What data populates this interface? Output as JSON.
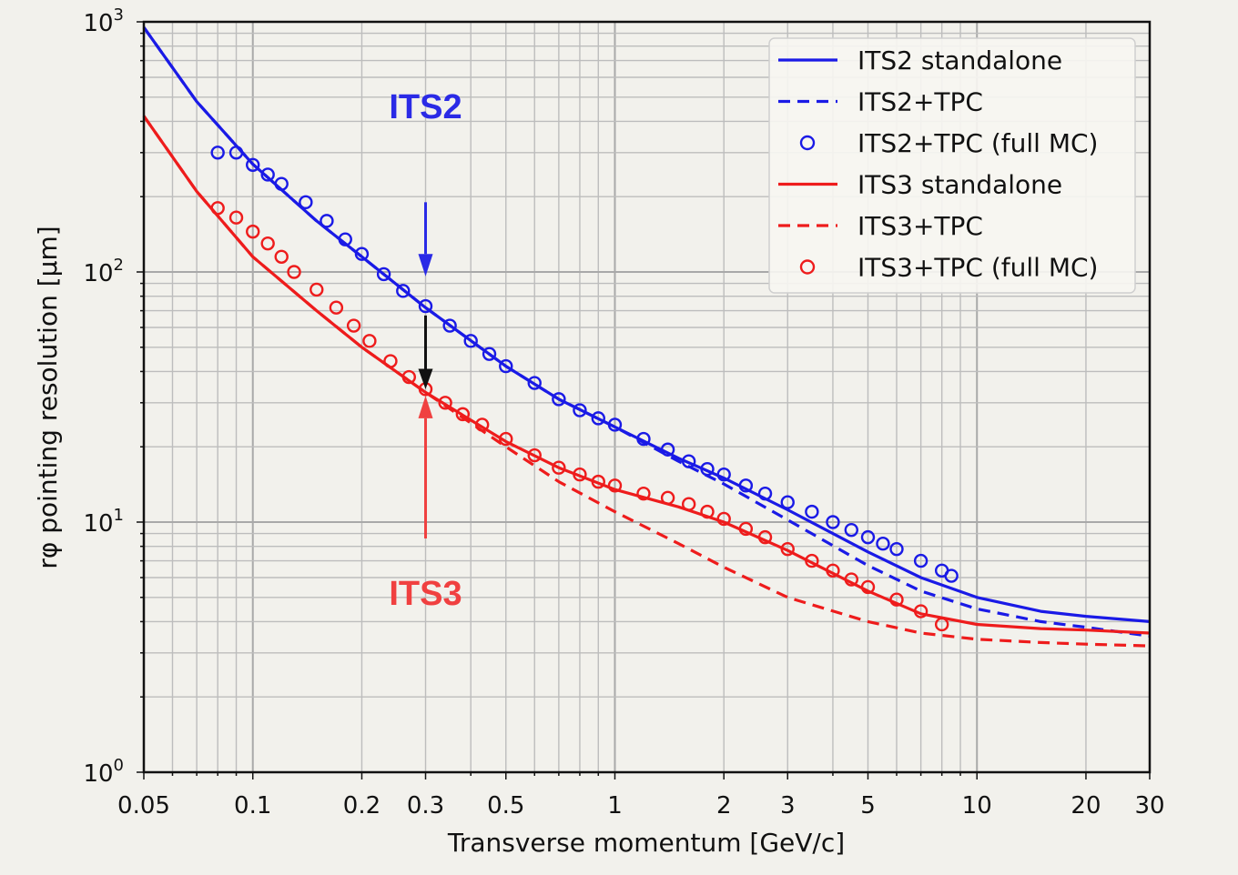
{
  "chart_data": {
    "type": "line",
    "title": "",
    "xlabel": "Transverse momentum [GeV/c]",
    "ylabel": "rφ pointing resolution [μm]",
    "xscale": "log",
    "yscale": "log",
    "xlim": [
      0.05,
      30
    ],
    "ylim": [
      1,
      1000
    ],
    "grid": true,
    "legend_position": "top-right",
    "x_ticks": [
      {
        "value": 0.05,
        "label": "0.05"
      },
      {
        "value": 0.1,
        "label": "0.1"
      },
      {
        "value": 0.2,
        "label": "0.2"
      },
      {
        "value": 0.3,
        "label": "0.3"
      },
      {
        "value": 0.5,
        "label": "0.5"
      },
      {
        "value": 1,
        "label": "1"
      },
      {
        "value": 2,
        "label": "2"
      },
      {
        "value": 3,
        "label": "3"
      },
      {
        "value": 5,
        "label": "5"
      },
      {
        "value": 10,
        "label": "10"
      },
      {
        "value": 20,
        "label": "20"
      },
      {
        "value": 30,
        "label": "30"
      }
    ],
    "y_ticks": [
      {
        "value": 1,
        "base": "10",
        "exp": "0"
      },
      {
        "value": 10,
        "base": "10",
        "exp": "1"
      },
      {
        "value": 100,
        "base": "10",
        "exp": "2"
      },
      {
        "value": 1000,
        "base": "10",
        "exp": "3"
      }
    ],
    "series": [
      {
        "name": "ITS2 standalone",
        "style": "solid",
        "color": "#1a1ae6",
        "x": [
          0.05,
          0.07,
          0.1,
          0.15,
          0.2,
          0.3,
          0.5,
          0.7,
          1,
          1.5,
          2,
          3,
          5,
          7,
          10,
          15,
          20,
          30
        ],
        "y": [
          950,
          480,
          270,
          160,
          115,
          72,
          42,
          31,
          24,
          18,
          15,
          11.2,
          7.6,
          6.0,
          5.0,
          4.4,
          4.2,
          4.0
        ]
      },
      {
        "name": "ITS2+TPC",
        "style": "dashed",
        "color": "#1a1ae6",
        "x": [
          0.05,
          0.07,
          0.1,
          0.15,
          0.2,
          0.3,
          0.5,
          0.7,
          1,
          1.5,
          2,
          3,
          5,
          7,
          10,
          15,
          20,
          30
        ],
        "y": [
          950,
          480,
          270,
          160,
          115,
          72,
          42,
          31,
          24,
          17.5,
          14.2,
          10.2,
          6.7,
          5.3,
          4.5,
          4.0,
          3.8,
          3.5
        ]
      },
      {
        "name": "ITS2+TPC (full MC)",
        "style": "markers",
        "color": "#1a1ae6",
        "x": [
          0.08,
          0.09,
          0.1,
          0.11,
          0.12,
          0.14,
          0.16,
          0.18,
          0.2,
          0.23,
          0.26,
          0.3,
          0.35,
          0.4,
          0.45,
          0.5,
          0.6,
          0.7,
          0.8,
          0.9,
          1,
          1.2,
          1.4,
          1.6,
          1.8,
          2,
          2.3,
          2.6,
          3,
          3.5,
          4,
          4.5,
          5,
          5.5,
          6,
          7,
          8,
          8.5
        ],
        "y": [
          300,
          300,
          268,
          245,
          225,
          190,
          160,
          135,
          118,
          98,
          84,
          73,
          61,
          53,
          47,
          42,
          36,
          31,
          28,
          26,
          24.5,
          21.5,
          19.5,
          17.5,
          16.3,
          15.5,
          14,
          13,
          12,
          11,
          10,
          9.3,
          8.7,
          8.2,
          7.8,
          7.0,
          6.4,
          6.1
        ]
      },
      {
        "name": "ITS3 standalone",
        "style": "solid",
        "color": "#ee1c1c",
        "x": [
          0.05,
          0.07,
          0.1,
          0.15,
          0.2,
          0.3,
          0.5,
          0.7,
          1,
          1.5,
          2,
          3,
          5,
          7,
          10,
          15,
          20,
          30
        ],
        "y": [
          420,
          210,
          115,
          70,
          50,
          33,
          21,
          16.5,
          13.5,
          11.5,
          10,
          7.7,
          5.3,
          4.3,
          3.9,
          3.75,
          3.7,
          3.6
        ]
      },
      {
        "name": "ITS3+TPC",
        "style": "dashed",
        "color": "#ee1c1c",
        "x": [
          0.05,
          0.07,
          0.1,
          0.15,
          0.2,
          0.3,
          0.5,
          0.7,
          1,
          1.5,
          2,
          3,
          5,
          7,
          10,
          15,
          20,
          30
        ],
        "y": [
          420,
          210,
          115,
          70,
          50,
          33,
          20,
          14.5,
          11,
          8.2,
          6.6,
          5.0,
          4.0,
          3.6,
          3.4,
          3.3,
          3.25,
          3.2
        ]
      },
      {
        "name": "ITS3+TPC (full MC)",
        "style": "markers",
        "color": "#ee1c1c",
        "x": [
          0.08,
          0.09,
          0.1,
          0.11,
          0.12,
          0.13,
          0.15,
          0.17,
          0.19,
          0.21,
          0.24,
          0.27,
          0.3,
          0.34,
          0.38,
          0.43,
          0.5,
          0.6,
          0.7,
          0.8,
          0.9,
          1,
          1.2,
          1.4,
          1.6,
          1.8,
          2,
          2.3,
          2.6,
          3,
          3.5,
          4,
          4.5,
          5,
          6,
          7,
          8
        ],
        "y": [
          180,
          165,
          145,
          130,
          115,
          100,
          85,
          72,
          61,
          53,
          44,
          38,
          34,
          30,
          27,
          24.5,
          21.5,
          18.5,
          16.5,
          15.5,
          14.5,
          14,
          13,
          12.5,
          11.8,
          11,
          10.3,
          9.4,
          8.7,
          7.8,
          7.0,
          6.4,
          5.9,
          5.5,
          4.9,
          4.4,
          3.9
        ]
      }
    ],
    "annotations": [
      {
        "text": "ITS2",
        "color": "#2a2ae6"
      },
      {
        "text": "ITS3",
        "color": "#f04040"
      }
    ]
  }
}
